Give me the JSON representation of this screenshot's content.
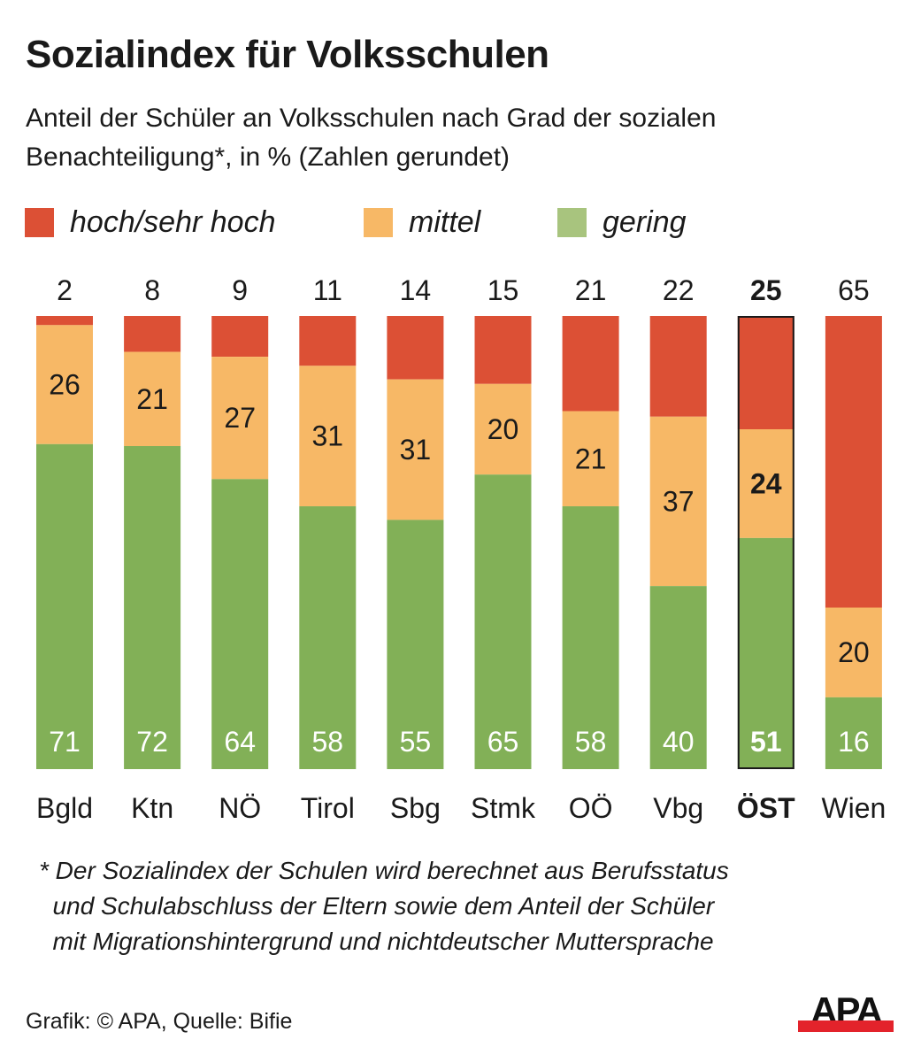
{
  "header": {
    "title": "Sozialindex für Volksschulen",
    "subtitle": "Anteil der Schüler an Volksschulen nach Grad der sozialen Benachteiligung*, in % (Zahlen gerundet)"
  },
  "legend": [
    {
      "label": "hoch/sehr hoch",
      "color": "#dc5035"
    },
    {
      "label": "mittel",
      "color": "#f7b866"
    },
    {
      "label": "gering",
      "color": "#a8c47e"
    }
  ],
  "chart_data": {
    "type": "bar",
    "stacked": true,
    "orientation": "vertical",
    "title": "Sozialindex für Volksschulen",
    "subtitle": "Anteil der Schüler an Volksschulen nach Grad der sozialen Benachteiligung*, in % (Zahlen gerundet)",
    "xlabel": "",
    "ylabel": "%",
    "ylim": [
      0,
      100
    ],
    "grid": false,
    "legend_position": "top-left",
    "categories": [
      "Bgld",
      "Ktn",
      "NÖ",
      "Tirol",
      "Sbg",
      "Stmk",
      "OÖ",
      "Vbg",
      "ÖST",
      "Wien"
    ],
    "highlight_category": "ÖST",
    "series": [
      {
        "name": "gering",
        "color": "#82b057",
        "values": [
          71,
          72,
          64,
          58,
          55,
          65,
          58,
          40,
          51,
          16
        ]
      },
      {
        "name": "mittel",
        "color": "#f7b866",
        "values": [
          26,
          21,
          27,
          31,
          31,
          20,
          21,
          37,
          24,
          20
        ]
      },
      {
        "name": "hoch/sehr hoch",
        "color": "#dc5035",
        "values": [
          2,
          8,
          9,
          11,
          14,
          15,
          21,
          22,
          25,
          65
        ]
      }
    ]
  },
  "footnote": "* Der Sozialindex der Schulen wird berechnet aus Berufsstatus\n  und Schulabschluss der Eltern sowie dem Anteil der Schüler\n  mit Migrationshintergrund und nichtdeutscher Muttersprache",
  "credit": "Grafik: © APA, Quelle: Bifie",
  "logo": {
    "text": "APA",
    "bar_color": "#e3232b"
  }
}
